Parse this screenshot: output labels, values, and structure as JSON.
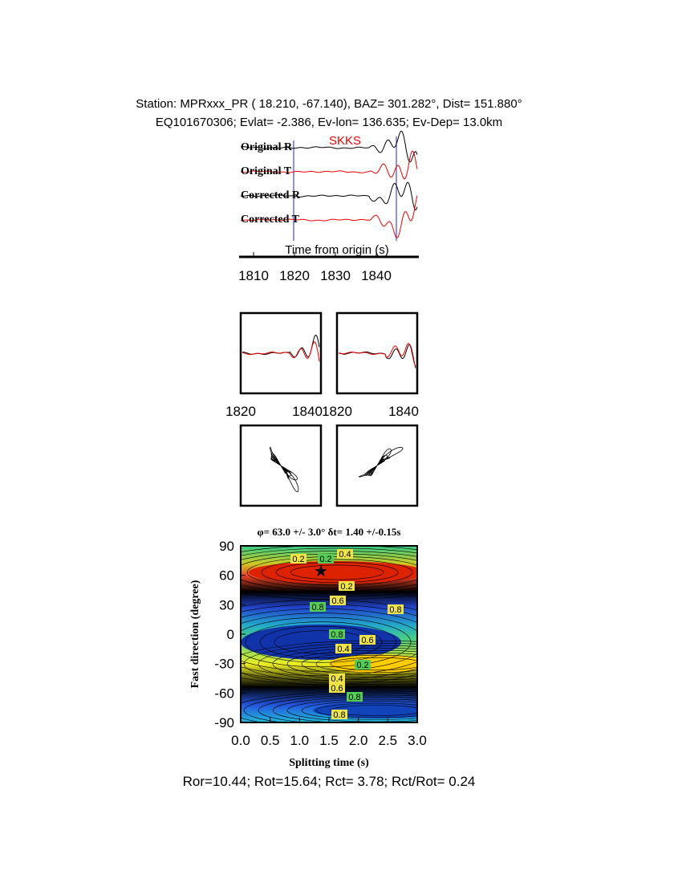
{
  "header": {
    "station": "Station: MPRxxx_PR (  18.210,  -67.140), BAZ=  301.282°, Dist=  151.880°",
    "event": "EQ101670306; Evlat=  -2.386, Ev-lon= 136.635; Ev-Dep= 13.0km"
  },
  "traces": {
    "phase": "SKKS",
    "labels": [
      "Original R",
      "Original T",
      "Corrected R",
      "Corrected T"
    ],
    "axis_label": "Time from origin (s)",
    "ticks": [
      "1810",
      "1820",
      "1830",
      "1840"
    ]
  },
  "waveform_panels": {
    "left_ticks": [
      "1820",
      "1840"
    ],
    "right_ticks": [
      "1820",
      "1840"
    ]
  },
  "grid_search": {
    "title": "φ= 63.0 +/- 3.0° δt= 1.40 +/-0.15s",
    "y_label": "Fast direction (degree)",
    "x_label": "Splitting time (s)",
    "yticks": [
      "90",
      "60",
      "30",
      "0",
      "-30",
      "-60",
      "-90"
    ],
    "xticks": [
      "0.0",
      "0.5",
      "1.0",
      "1.5",
      "2.0",
      "2.5",
      "3.0"
    ],
    "contour_labels": [
      "0.2",
      "0.2",
      "0.4",
      "0.2",
      "0.8",
      "0.6",
      "0.8",
      "0.8",
      "0.4",
      "0.6",
      "0.2",
      "0.4",
      "0.6",
      "0.8",
      "0.8"
    ]
  },
  "footer": "Ror=10.44; Rot=15.64; Rct= 3.78; Rct/Rot= 0.24"
}
